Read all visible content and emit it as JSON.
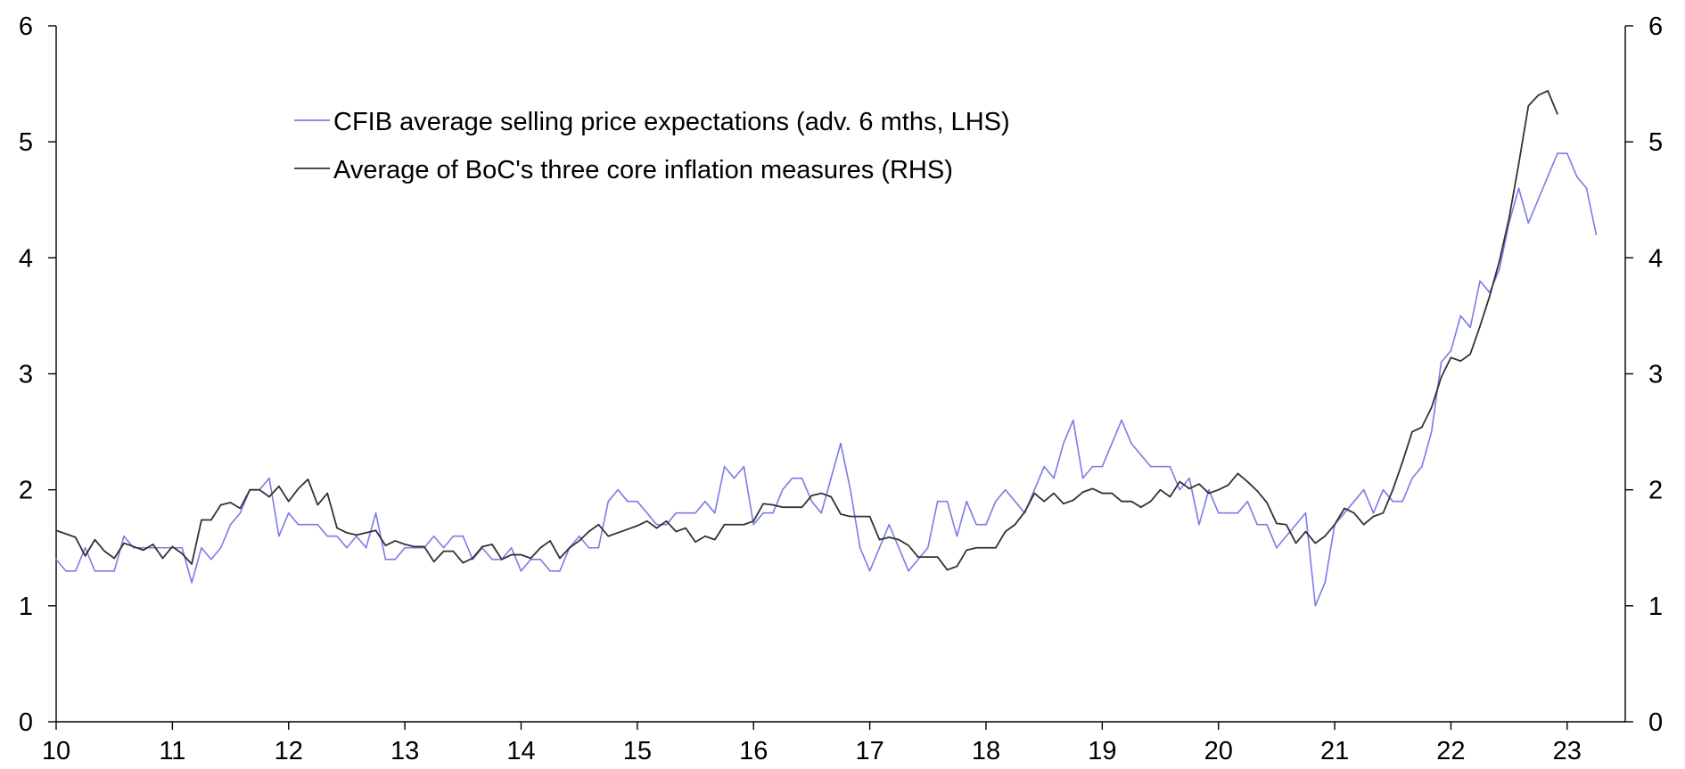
{
  "chart_data": {
    "type": "line",
    "title": "",
    "xlabel": "",
    "ylabel": "",
    "x_start_year": 2010,
    "x_step_months": 1,
    "xlim": [
      2010.0,
      2023.5
    ],
    "ylim": [
      0,
      6
    ],
    "y2lim": [
      0,
      6
    ],
    "x_ticks": [
      {
        "value": 2010,
        "label": "10"
      },
      {
        "value": 2011,
        "label": "11"
      },
      {
        "value": 2012,
        "label": "12"
      },
      {
        "value": 2013,
        "label": "13"
      },
      {
        "value": 2014,
        "label": "14"
      },
      {
        "value": 2015,
        "label": "15"
      },
      {
        "value": 2016,
        "label": "16"
      },
      {
        "value": 2017,
        "label": "17"
      },
      {
        "value": 2018,
        "label": "18"
      },
      {
        "value": 2019,
        "label": "19"
      },
      {
        "value": 2020,
        "label": "20"
      },
      {
        "value": 2021,
        "label": "21"
      },
      {
        "value": 2022,
        "label": "22"
      },
      {
        "value": 2023,
        "label": "23"
      }
    ],
    "y_ticks": [
      {
        "value": 0,
        "label": "0"
      },
      {
        "value": 1,
        "label": "1"
      },
      {
        "value": 2,
        "label": "2"
      },
      {
        "value": 3,
        "label": "3"
      },
      {
        "value": 4,
        "label": "4"
      },
      {
        "value": 5,
        "label": "5"
      },
      {
        "value": 6,
        "label": "6"
      }
    ],
    "y2_ticks": [
      {
        "value": 0,
        "label": "0"
      },
      {
        "value": 1,
        "label": "1"
      },
      {
        "value": 2,
        "label": "2"
      },
      {
        "value": 3,
        "label": "3"
      },
      {
        "value": 4,
        "label": "4"
      },
      {
        "value": 5,
        "label": "5"
      },
      {
        "value": 6,
        "label": "6"
      }
    ],
    "grid": false,
    "legend_position": "top-left",
    "series": [
      {
        "name": "CFIB average selling price expectations (adv. 6 mths, LHS)",
        "axis": "left",
        "color": "#7b7be8",
        "values": [
          1.4,
          1.3,
          1.3,
          1.5,
          1.3,
          1.3,
          1.3,
          1.6,
          1.5,
          1.5,
          1.5,
          1.5,
          1.5,
          1.5,
          1.2,
          1.5,
          1.4,
          1.5,
          1.7,
          1.8,
          2.0,
          2.0,
          2.1,
          1.6,
          1.8,
          1.7,
          1.7,
          1.7,
          1.6,
          1.6,
          1.5,
          1.6,
          1.5,
          1.8,
          1.4,
          1.4,
          1.5,
          1.5,
          1.5,
          1.6,
          1.5,
          1.6,
          1.6,
          1.4,
          1.5,
          1.4,
          1.4,
          1.5,
          1.3,
          1.4,
          1.4,
          1.3,
          1.3,
          1.5,
          1.6,
          1.5,
          1.5,
          1.9,
          2.0,
          1.9,
          1.9,
          1.8,
          1.7,
          1.7,
          1.8,
          1.8,
          1.8,
          1.9,
          1.8,
          2.2,
          2.1,
          2.2,
          1.7,
          1.8,
          1.8,
          2.0,
          2.1,
          2.1,
          1.9,
          1.8,
          2.1,
          2.4,
          2.0,
          1.5,
          1.3,
          1.5,
          1.7,
          1.5,
          1.3,
          1.4,
          1.5,
          1.9,
          1.9,
          1.6,
          1.9,
          1.7,
          1.7,
          1.9,
          2.0,
          1.9,
          1.8,
          2.0,
          2.2,
          2.1,
          2.4,
          2.6,
          2.1,
          2.2,
          2.2,
          2.4,
          2.6,
          2.4,
          2.3,
          2.2,
          2.2,
          2.2,
          2.0,
          2.1,
          1.7,
          2.0,
          1.8,
          1.8,
          1.8,
          1.9,
          1.7,
          1.7,
          1.5,
          1.6,
          1.7,
          1.8,
          1.0,
          1.2,
          1.7,
          1.8,
          1.9,
          2.0,
          1.8,
          2.0,
          1.9,
          1.9,
          2.1,
          2.2,
          2.5,
          3.1,
          3.2,
          3.5,
          3.4,
          3.8,
          3.7,
          3.9,
          4.3,
          4.6,
          4.3,
          4.5,
          4.7,
          4.9,
          4.9,
          4.7,
          4.6,
          4.2
        ]
      },
      {
        "name": "Average of BoC's three core inflation measures (RHS)",
        "axis": "right",
        "color": "#333333",
        "values": [
          1.65,
          1.62,
          1.59,
          1.43,
          1.57,
          1.47,
          1.41,
          1.54,
          1.51,
          1.48,
          1.53,
          1.41,
          1.51,
          1.45,
          1.36,
          1.74,
          1.74,
          1.87,
          1.89,
          1.84,
          2.0,
          2.0,
          1.94,
          2.03,
          1.9,
          2.01,
          2.09,
          1.87,
          1.97,
          1.67,
          1.63,
          1.61,
          1.63,
          1.65,
          1.52,
          1.56,
          1.53,
          1.51,
          1.51,
          1.38,
          1.47,
          1.47,
          1.37,
          1.41,
          1.51,
          1.53,
          1.4,
          1.44,
          1.44,
          1.41,
          1.5,
          1.56,
          1.41,
          1.5,
          1.56,
          1.64,
          1.7,
          1.6,
          1.63,
          1.66,
          1.69,
          1.73,
          1.67,
          1.73,
          1.64,
          1.67,
          1.55,
          1.6,
          1.57,
          1.7,
          1.7,
          1.7,
          1.73,
          1.88,
          1.87,
          1.85,
          1.85,
          1.85,
          1.95,
          1.97,
          1.94,
          1.79,
          1.77,
          1.77,
          1.77,
          1.57,
          1.59,
          1.57,
          1.52,
          1.42,
          1.42,
          1.42,
          1.31,
          1.34,
          1.48,
          1.5,
          1.5,
          1.5,
          1.64,
          1.7,
          1.81,
          1.97,
          1.9,
          1.97,
          1.88,
          1.91,
          1.98,
          2.01,
          1.97,
          1.97,
          1.9,
          1.9,
          1.85,
          1.9,
          2.0,
          1.94,
          2.07,
          2.01,
          2.05,
          1.97,
          2.0,
          2.04,
          2.14,
          2.07,
          1.99,
          1.89,
          1.71,
          1.7,
          1.54,
          1.64,
          1.54,
          1.6,
          1.7,
          1.84,
          1.8,
          1.7,
          1.77,
          1.8,
          2.0,
          2.24,
          2.5,
          2.54,
          2.71,
          2.97,
          3.14,
          3.11,
          3.17,
          3.41,
          3.67,
          3.97,
          4.34,
          4.81,
          5.31,
          5.4,
          5.44,
          5.24
        ]
      }
    ]
  }
}
